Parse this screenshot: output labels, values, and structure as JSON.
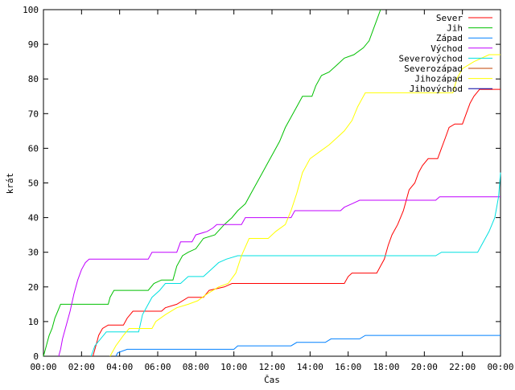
{
  "chart_data": {
    "type": "line",
    "title": "",
    "xlabel": "Čas",
    "ylabel": "krát",
    "ylim": [
      0,
      100
    ],
    "xlim": [
      0,
      24
    ],
    "grid": false,
    "legend_position": "top-right",
    "y_ticks": [
      "0",
      "10",
      "20",
      "30",
      "40",
      "50",
      "60",
      "70",
      "80",
      "90",
      "100"
    ],
    "x_ticks": [
      "00:00",
      "02:00",
      "04:00",
      "06:00",
      "08:00",
      "10:00",
      "12:00",
      "14:00",
      "16:00",
      "18:00",
      "20:00",
      "22:00",
      "00:00"
    ],
    "series": [
      {
        "name": "Sever",
        "color": "#ff0000",
        "points": [
          [
            2.6,
            0
          ],
          [
            2.7,
            2
          ],
          [
            2.8,
            4
          ],
          [
            2.9,
            6
          ],
          [
            3.1,
            8
          ],
          [
            3.4,
            9
          ],
          [
            4.2,
            9
          ],
          [
            4.4,
            11
          ],
          [
            4.7,
            13
          ],
          [
            6.2,
            13
          ],
          [
            6.4,
            14
          ],
          [
            7.0,
            15
          ],
          [
            7.6,
            17
          ],
          [
            8.4,
            17
          ],
          [
            8.7,
            19
          ],
          [
            9.5,
            20
          ],
          [
            9.9,
            21
          ],
          [
            12.0,
            21
          ],
          [
            14.5,
            21
          ],
          [
            15.8,
            21
          ],
          [
            16.0,
            23
          ],
          [
            16.2,
            24
          ],
          [
            17.5,
            24
          ],
          [
            17.7,
            26
          ],
          [
            17.9,
            28
          ],
          [
            18.1,
            32
          ],
          [
            18.3,
            35
          ],
          [
            18.6,
            38
          ],
          [
            18.9,
            42
          ],
          [
            19.2,
            48
          ],
          [
            19.5,
            50
          ],
          [
            19.7,
            53
          ],
          [
            19.9,
            55
          ],
          [
            20.2,
            57
          ],
          [
            20.7,
            57
          ],
          [
            20.9,
            60
          ],
          [
            21.1,
            63
          ],
          [
            21.3,
            66
          ],
          [
            21.6,
            67
          ],
          [
            22.0,
            67
          ],
          [
            22.2,
            70
          ],
          [
            22.4,
            73
          ],
          [
            22.6,
            75
          ],
          [
            22.9,
            77
          ],
          [
            24.0,
            77
          ]
        ]
      },
      {
        "name": "Jih",
        "color": "#00c000",
        "points": [
          [
            0,
            0
          ],
          [
            0.1,
            2
          ],
          [
            0.2,
            4
          ],
          [
            0.3,
            6
          ],
          [
            0.45,
            8
          ],
          [
            0.6,
            11
          ],
          [
            0.75,
            13
          ],
          [
            0.9,
            15
          ],
          [
            3.4,
            15
          ],
          [
            3.5,
            17
          ],
          [
            3.7,
            19
          ],
          [
            5.5,
            19
          ],
          [
            5.8,
            21
          ],
          [
            6.2,
            22
          ],
          [
            6.8,
            22
          ],
          [
            7.0,
            26
          ],
          [
            7.3,
            29
          ],
          [
            7.6,
            30
          ],
          [
            8.0,
            31
          ],
          [
            8.4,
            34
          ],
          [
            9.0,
            35
          ],
          [
            9.5,
            38
          ],
          [
            9.9,
            40
          ],
          [
            10.2,
            42
          ],
          [
            10.6,
            44
          ],
          [
            10.9,
            47
          ],
          [
            11.2,
            50
          ],
          [
            11.5,
            53
          ],
          [
            11.8,
            56
          ],
          [
            12.1,
            59
          ],
          [
            12.4,
            62
          ],
          [
            12.7,
            66
          ],
          [
            13.0,
            69
          ],
          [
            13.3,
            72
          ],
          [
            13.6,
            75
          ],
          [
            14.1,
            75
          ],
          [
            14.3,
            78
          ],
          [
            14.6,
            81
          ],
          [
            15.0,
            82
          ],
          [
            15.4,
            84
          ],
          [
            15.8,
            86
          ],
          [
            16.3,
            87
          ],
          [
            16.8,
            89
          ],
          [
            17.1,
            91
          ],
          [
            17.3,
            94
          ],
          [
            17.5,
            97
          ],
          [
            17.7,
            100
          ]
        ]
      },
      {
        "name": "Západ",
        "color": "#0080ff",
        "points": [
          [
            3.8,
            0
          ],
          [
            3.9,
            1
          ],
          [
            4.4,
            2
          ],
          [
            10.0,
            2
          ],
          [
            10.2,
            3
          ],
          [
            13.0,
            3
          ],
          [
            13.3,
            4
          ],
          [
            14.8,
            4
          ],
          [
            15.1,
            5
          ],
          [
            16.6,
            5
          ],
          [
            16.9,
            6
          ],
          [
            24.0,
            6
          ]
        ]
      },
      {
        "name": "Východ",
        "color": "#c000ff",
        "points": [
          [
            0.8,
            0
          ],
          [
            0.9,
            2
          ],
          [
            1.0,
            5
          ],
          [
            1.2,
            9
          ],
          [
            1.4,
            13
          ],
          [
            1.6,
            18
          ],
          [
            1.8,
            22
          ],
          [
            2.0,
            25
          ],
          [
            2.2,
            27
          ],
          [
            2.4,
            28
          ],
          [
            5.5,
            28
          ],
          [
            5.7,
            30
          ],
          [
            7.0,
            30
          ],
          [
            7.2,
            33
          ],
          [
            7.8,
            33
          ],
          [
            8.0,
            35
          ],
          [
            8.6,
            36
          ],
          [
            8.9,
            37
          ],
          [
            9.1,
            38
          ],
          [
            10.4,
            38
          ],
          [
            10.6,
            40
          ],
          [
            13.0,
            40
          ],
          [
            13.2,
            42
          ],
          [
            15.6,
            42
          ],
          [
            15.8,
            43
          ],
          [
            16.2,
            44
          ],
          [
            16.6,
            45
          ],
          [
            20.6,
            45
          ],
          [
            20.8,
            46
          ],
          [
            24.0,
            46
          ]
        ]
      },
      {
        "name": "Severovýchod",
        "color": "#00e0e0",
        "points": [
          [
            2.5,
            0
          ],
          [
            2.7,
            3
          ],
          [
            3.0,
            5
          ],
          [
            3.3,
            7
          ],
          [
            5.0,
            7
          ],
          [
            5.2,
            12
          ],
          [
            5.4,
            14
          ],
          [
            5.7,
            17
          ],
          [
            6.1,
            19
          ],
          [
            6.4,
            21
          ],
          [
            7.2,
            21
          ],
          [
            7.6,
            23
          ],
          [
            8.4,
            23
          ],
          [
            8.8,
            25
          ],
          [
            9.2,
            27
          ],
          [
            9.6,
            28
          ],
          [
            10.2,
            29
          ],
          [
            20.6,
            29
          ],
          [
            20.9,
            30
          ],
          [
            22.8,
            30
          ],
          [
            23.1,
            33
          ],
          [
            23.4,
            36
          ],
          [
            23.7,
            40
          ],
          [
            23.9,
            46
          ],
          [
            24.0,
            53
          ]
        ]
      },
      {
        "name": "Severozápad",
        "color": "#c04000",
        "points": []
      },
      {
        "name": "Jihozápad",
        "color": "#ffff00",
        "points": [
          [
            3.5,
            0
          ],
          [
            3.8,
            3
          ],
          [
            4.2,
            6
          ],
          [
            4.5,
            8
          ],
          [
            5.7,
            8
          ],
          [
            5.9,
            10
          ],
          [
            6.4,
            12
          ],
          [
            7.0,
            14
          ],
          [
            7.6,
            15
          ],
          [
            8.1,
            16
          ],
          [
            8.6,
            18
          ],
          [
            9.2,
            20
          ],
          [
            9.7,
            21
          ],
          [
            10.1,
            24
          ],
          [
            10.4,
            29
          ],
          [
            10.8,
            34
          ],
          [
            11.8,
            34
          ],
          [
            12.2,
            36
          ],
          [
            12.7,
            38
          ],
          [
            13.0,
            42
          ],
          [
            13.3,
            47
          ],
          [
            13.6,
            53
          ],
          [
            14.0,
            57
          ],
          [
            14.5,
            59
          ],
          [
            15.0,
            61
          ],
          [
            15.4,
            63
          ],
          [
            15.8,
            65
          ],
          [
            16.2,
            68
          ],
          [
            16.5,
            72
          ],
          [
            16.9,
            76
          ],
          [
            21.5,
            76
          ],
          [
            21.7,
            80
          ],
          [
            22.0,
            83
          ],
          [
            22.6,
            85
          ],
          [
            23.4,
            87
          ],
          [
            24.0,
            87
          ]
        ]
      },
      {
        "name": "Jihovýchod",
        "color": "#0000a0",
        "points": []
      }
    ]
  }
}
